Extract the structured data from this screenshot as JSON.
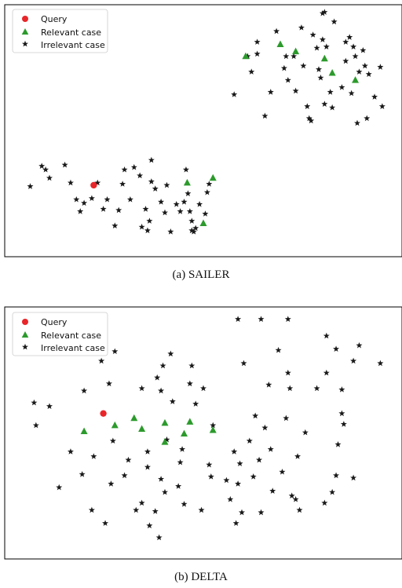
{
  "colors": {
    "query": "#e8262a",
    "relevant": "#2c9a2c",
    "irrelevant": "#1a1a1a",
    "frame": "#000000"
  },
  "chart_data": [
    {
      "type": "scatter",
      "caption": "(a) SAILER",
      "legend": [
        "Query",
        "Relevant case",
        "Irrelevant case"
      ],
      "legend_position": "top-left",
      "grid": false,
      "xlim": [
        0,
        100
      ],
      "ylim": [
        0,
        100
      ],
      "series": [
        {
          "name": "Query",
          "marker": "circle",
          "points": [
            [
              21.5,
              27.0
            ]
          ]
        },
        {
          "name": "Relevant case",
          "marker": "triangle",
          "points": [
            [
              45.8,
              28.0
            ],
            [
              52.5,
              30.0
            ],
            [
              50.0,
              11.0
            ],
            [
              61.0,
              81.0
            ],
            [
              70.0,
              86.0
            ],
            [
              74.0,
              83.0
            ],
            [
              81.5,
              80.0
            ],
            [
              83.5,
              74.0
            ],
            [
              89.5,
              71.0
            ]
          ]
        },
        {
          "name": "Irrelevant case",
          "marker": "star",
          "points": [
            [
              5.0,
              26.5
            ],
            [
              8.0,
              35.0
            ],
            [
              9.0,
              33.5
            ],
            [
              10.0,
              30.0
            ],
            [
              14.0,
              35.5
            ],
            [
              15.5,
              28.0
            ],
            [
              17.0,
              21.0
            ],
            [
              18.0,
              16.0
            ],
            [
              19.0,
              19.5
            ],
            [
              21.0,
              21.5
            ],
            [
              22.5,
              28.0
            ],
            [
              24.0,
              17.0
            ],
            [
              25.0,
              21.0
            ],
            [
              27.0,
              10.0
            ],
            [
              28.0,
              16.5
            ],
            [
              29.0,
              27.5
            ],
            [
              29.5,
              33.5
            ],
            [
              31.0,
              21.0
            ],
            [
              32.0,
              34.5
            ],
            [
              33.5,
              31.0
            ],
            [
              34.0,
              9.5
            ],
            [
              35.0,
              17.0
            ],
            [
              36.0,
              12.0
            ],
            [
              36.5,
              28.5
            ],
            [
              35.5,
              8.0
            ],
            [
              36.5,
              37.5
            ],
            [
              37.5,
              25.5
            ],
            [
              39.0,
              20.0
            ],
            [
              40.0,
              15.5
            ],
            [
              40.5,
              27.0
            ],
            [
              41.5,
              7.5
            ],
            [
              43.0,
              19.0
            ],
            [
              44.0,
              16.0
            ],
            [
              45.0,
              20.0
            ],
            [
              46.5,
              16.0
            ],
            [
              45.5,
              33.5
            ],
            [
              46.0,
              23.5
            ],
            [
              47.0,
              12.0
            ],
            [
              47.5,
              7.5
            ],
            [
              48.0,
              9.0
            ],
            [
              49.0,
              19.0
            ],
            [
              50.5,
              15.0
            ],
            [
              51.0,
              24.0
            ],
            [
              51.5,
              27.5
            ],
            [
              47.0,
              8.0
            ],
            [
              58.0,
              65.0
            ],
            [
              61.5,
              81.0
            ],
            [
              62.5,
              74.5
            ],
            [
              64.0,
              87.0
            ],
            [
              64.0,
              82.0
            ],
            [
              66.0,
              56.0
            ],
            [
              67.5,
              66.0
            ],
            [
              69.0,
              91.5
            ],
            [
              71.0,
              76.0
            ],
            [
              71.5,
              81.0
            ],
            [
              72.0,
              71.0
            ],
            [
              73.5,
              81.0
            ],
            [
              74.0,
              66.5
            ],
            [
              75.5,
              93.0
            ],
            [
              76.0,
              77.0
            ],
            [
              77.0,
              60.0
            ],
            [
              77.5,
              55.0
            ],
            [
              78.0,
              54.0
            ],
            [
              78.5,
              90.0
            ],
            [
              79.5,
              84.5
            ],
            [
              80.0,
              75.5
            ],
            [
              80.5,
              72.0
            ],
            [
              81.0,
              88.0
            ],
            [
              81.5,
              61.0
            ],
            [
              82.0,
              85.0
            ],
            [
              83.0,
              66.0
            ],
            [
              83.5,
              59.5
            ],
            [
              84.0,
              95.5
            ],
            [
              86.0,
              68.0
            ],
            [
              87.0,
              87.0
            ],
            [
              87.0,
              79.0
            ],
            [
              88.0,
              89.0
            ],
            [
              88.5,
              65.5
            ],
            [
              89.0,
              85.0
            ],
            [
              89.5,
              81.0
            ],
            [
              90.0,
              53.0
            ],
            [
              90.5,
              74.5
            ],
            [
              91.5,
              83.5
            ],
            [
              92.0,
              77.0
            ],
            [
              92.5,
              55.0
            ],
            [
              93.0,
              73.5
            ],
            [
              94.5,
              64.0
            ],
            [
              96.0,
              76.5
            ],
            [
              81.0,
              99.0
            ],
            [
              81.5,
              99.5
            ],
            [
              96.5,
              60.0
            ]
          ]
        }
      ]
    },
    {
      "type": "scatter",
      "caption": "(b) DELTA",
      "legend": [
        "Query",
        "Relevant case",
        "Irrelevant case"
      ],
      "legend_position": "top-left",
      "grid": false,
      "xlim": [
        0,
        100
      ],
      "ylim": [
        0,
        100
      ],
      "series": [
        {
          "name": "Query",
          "marker": "circle",
          "points": [
            [
              24.0,
              58.0
            ]
          ]
        },
        {
          "name": "Relevant case",
          "marker": "triangle",
          "points": [
            [
              19.0,
              50.5
            ],
            [
              27.0,
              53.0
            ],
            [
              32.0,
              56.0
            ],
            [
              34.0,
              51.5
            ],
            [
              40.0,
              54.0
            ],
            [
              40.0,
              46.0
            ],
            [
              45.0,
              49.5
            ],
            [
              46.5,
              54.5
            ],
            [
              52.5,
              51.0
            ]
          ]
        },
        {
          "name": "Irrelevant case",
          "marker": "star",
          "points": [
            [
              6.0,
              62.5
            ],
            [
              6.5,
              53.0
            ],
            [
              10.0,
              61.0
            ],
            [
              12.5,
              27.0
            ],
            [
              15.5,
              42.0
            ],
            [
              18.5,
              32.5
            ],
            [
              19.0,
              67.5
            ],
            [
              21.0,
              17.5
            ],
            [
              21.5,
              40.0
            ],
            [
              23.5,
              80.0
            ],
            [
              24.5,
              12.0
            ],
            [
              26.0,
              28.5
            ],
            [
              26.5,
              46.5
            ],
            [
              27.0,
              84.0
            ],
            [
              29.5,
              32.0
            ],
            [
              30.5,
              38.5
            ],
            [
              32.5,
              17.5
            ],
            [
              34.0,
              68.5
            ],
            [
              34.0,
              20.5
            ],
            [
              35.5,
              42.0
            ],
            [
              35.5,
              35.5
            ],
            [
              37.5,
              17.0
            ],
            [
              38.0,
              73.0
            ],
            [
              39.5,
              78.0
            ],
            [
              39.0,
              67.5
            ],
            [
              39.0,
              30.5
            ],
            [
              40.5,
              47.0
            ],
            [
              40.0,
              25.0
            ],
            [
              41.5,
              83.0
            ],
            [
              42.0,
              63.0
            ],
            [
              43.5,
              27.5
            ],
            [
              44.0,
              37.5
            ],
            [
              44.5,
              43.0
            ],
            [
              45.0,
              20.0
            ],
            [
              46.5,
              70.5
            ],
            [
              47.0,
              78.0
            ],
            [
              48.0,
              62.0
            ],
            [
              49.5,
              17.5
            ],
            [
              50.0,
              68.5
            ],
            [
              51.5,
              36.5
            ],
            [
              52.0,
              31.5
            ],
            [
              52.5,
              53.0
            ],
            [
              56.0,
              30.0
            ],
            [
              57.0,
              22.0
            ],
            [
              58.0,
              42.0
            ],
            [
              58.5,
              12.0
            ],
            [
              59.0,
              28.5
            ],
            [
              59.5,
              37.0
            ],
            [
              60.0,
              16.5
            ],
            [
              60.5,
              79.0
            ],
            [
              62.0,
              46.5
            ],
            [
              63.0,
              31.5
            ],
            [
              63.5,
              57.0
            ],
            [
              64.5,
              38.5
            ],
            [
              65.0,
              16.5
            ],
            [
              66.0,
              52.0
            ],
            [
              67.0,
              70.0
            ],
            [
              67.5,
              43.0
            ],
            [
              68.0,
              25.5
            ],
            [
              69.5,
              84.5
            ],
            [
              70.5,
              33.5
            ],
            [
              71.5,
              56.0
            ],
            [
              72.0,
              75.0
            ],
            [
              72.5,
              68.5
            ],
            [
              73.0,
              23.5
            ],
            [
              74.0,
              22.0
            ],
            [
              74.5,
              40.0
            ],
            [
              75.0,
              17.5
            ],
            [
              76.5,
              50.0
            ],
            [
              79.5,
              68.5
            ],
            [
              81.5,
              20.5
            ],
            [
              82.0,
              90.5
            ],
            [
              82.0,
              75.0
            ],
            [
              83.5,
              25.0
            ],
            [
              84.5,
              85.0
            ],
            [
              84.5,
              32.0
            ],
            [
              85.0,
              45.0
            ],
            [
              86.0,
              68.0
            ],
            [
              86.0,
              58.0
            ],
            [
              86.5,
              53.5
            ],
            [
              89.0,
              31.0
            ],
            [
              89.0,
              80.0
            ],
            [
              90.5,
              86.5
            ],
            [
              96.0,
              79.0
            ],
            [
              59.0,
              97.5
            ],
            [
              65.0,
              97.5
            ],
            [
              72.0,
              97.5
            ],
            [
              38.5,
              6.0
            ],
            [
              36.0,
              11.0
            ],
            [
              25.5,
              70.5
            ]
          ]
        }
      ]
    }
  ]
}
